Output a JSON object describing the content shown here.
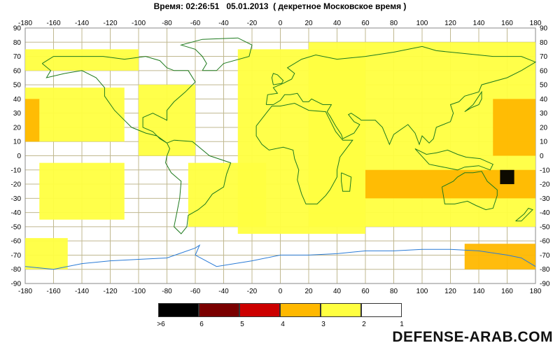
{
  "title": "Время: 02:26:51   05.01.2013  ( декретное Московское время )",
  "watermark": "DEFENSE-ARAB.COM",
  "axes": {
    "lon_ticks": [
      -180,
      -160,
      -140,
      -120,
      -100,
      -80,
      -60,
      -40,
      -20,
      0,
      20,
      40,
      60,
      80,
      100,
      120,
      140,
      160,
      180
    ],
    "lat_ticks": [
      90,
      80,
      70,
      60,
      50,
      40,
      30,
      20,
      10,
      0,
      -10,
      -20,
      -30,
      -40,
      -50,
      -60,
      -70,
      -80,
      -90
    ],
    "grid": true
  },
  "colors": {
    "grid": "#c0b890",
    "coast": "#1e7a1e",
    "antarctic": "#2a7bd6",
    "level_2": "#ffff40",
    "level_3": "#ffb800",
    "level_4": "#dd0000",
    "level_5": "#a00000",
    "level_6": "#000000"
  },
  "legend": {
    "swatches": [
      {
        "color": "#000000",
        "level": ">6"
      },
      {
        "color": "#7a0000",
        "level": "6"
      },
      {
        "color": "#cc0000",
        "level": "5"
      },
      {
        "color": "#ffb800",
        "level": "4"
      },
      {
        "color": "#ffff40",
        "level": "3"
      },
      {
        "color": "#ffffff",
        "level": "2"
      }
    ],
    "end_label": "1"
  },
  "chart_data": {
    "type": "heatmap",
    "title": "Время: 02:26:51   05.01.2013  ( декретное Московское время )",
    "xlim": [
      -180,
      180
    ],
    "ylim": [
      -90,
      90
    ],
    "regions": [
      {
        "level": 2,
        "lon": [
          -180,
          -100
        ],
        "lat": [
          60,
          75
        ]
      },
      {
        "level": 2,
        "lon": [
          -180,
          -110
        ],
        "lat": [
          10,
          48
        ]
      },
      {
        "level": 3,
        "lon": [
          -180,
          -170
        ],
        "lat": [
          10,
          40
        ]
      },
      {
        "level": 2,
        "lon": [
          -170,
          -110
        ],
        "lat": [
          -45,
          -5
        ]
      },
      {
        "level": 2,
        "lon": [
          -100,
          -60
        ],
        "lat": [
          0,
          50
        ]
      },
      {
        "level": 2,
        "lon": [
          -65,
          -10
        ],
        "lat": [
          -50,
          -5
        ]
      },
      {
        "level": 2,
        "lon": [
          -30,
          60
        ],
        "lat": [
          -55,
          75
        ]
      },
      {
        "level": 2,
        "lon": [
          20,
          180
        ],
        "lat": [
          -50,
          80
        ]
      },
      {
        "level": 3,
        "lon": [
          60,
          180
        ],
        "lat": [
          -30,
          -10
        ]
      },
      {
        "level": 3,
        "lon": [
          150,
          180
        ],
        "lat": [
          0,
          40
        ]
      },
      {
        "level": 3,
        "lon": [
          130,
          180
        ],
        "lat": [
          -80,
          -62
        ]
      },
      {
        "level": 6,
        "lon": [
          155,
          165
        ],
        "lat": [
          -20,
          -10
        ]
      },
      {
        "level": 2,
        "lon": [
          -180,
          -150
        ],
        "lat": [
          -80,
          -58
        ]
      }
    ]
  }
}
